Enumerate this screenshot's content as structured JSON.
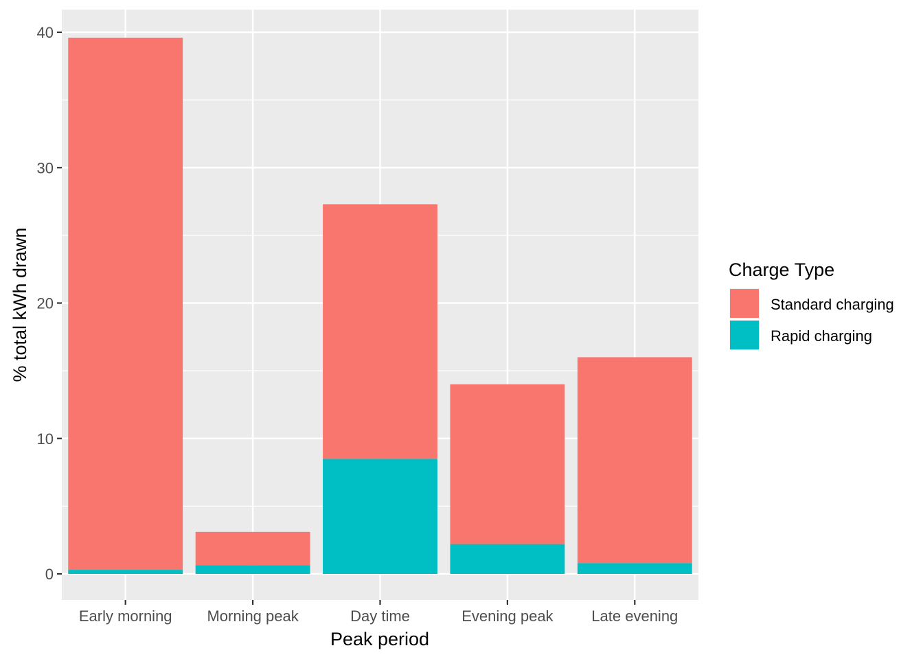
{
  "chart_data": {
    "type": "bar",
    "stacked": true,
    "categories": [
      "Early morning",
      "Morning peak",
      "Day time",
      "Evening peak",
      "Late evening"
    ],
    "series": [
      {
        "name": "Standard charging",
        "color": "#F8766D",
        "values": [
          39.3,
          2.45,
          18.8,
          11.8,
          15.2
        ]
      },
      {
        "name": "Rapid charging",
        "color": "#00BFC4",
        "values": [
          0.3,
          0.65,
          8.5,
          2.2,
          0.8
        ]
      }
    ],
    "xlabel": "Peak period",
    "ylabel": "% total kWh drawn",
    "ylim": [
      -1.8,
      41.6
    ],
    "yticks": [
      0,
      10,
      20,
      30,
      40
    ],
    "ytick_labels": [
      "0",
      "10",
      "20",
      "30",
      "40"
    ],
    "grid": true,
    "legend": {
      "title": "Charge Type",
      "position": "right"
    },
    "panel_color": "#EBEBEB"
  }
}
